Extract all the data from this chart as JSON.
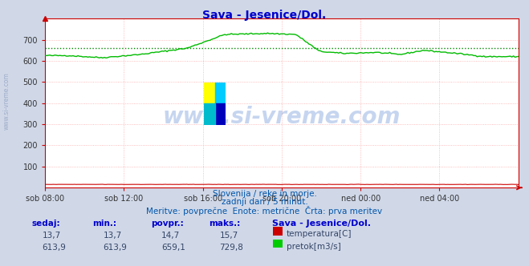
{
  "title": "Sava - Jesenice/Dol.",
  "title_color": "#0000cc",
  "bg_color": "#d0d8e8",
  "plot_bg_color": "#ffffff",
  "grid_color": "#ffaaaa",
  "x_labels": [
    "sob 08:00",
    "sob 12:00",
    "sob 16:00",
    "sob 20:00",
    "ned 00:00",
    "ned 04:00"
  ],
  "x_ticks_norm": [
    0.0,
    0.1667,
    0.3333,
    0.5,
    0.6667,
    0.8333
  ],
  "y_min": 0,
  "y_max": 800,
  "y_ticks": [
    100,
    200,
    300,
    400,
    500,
    600,
    700
  ],
  "avg_line_value": 659.1,
  "avg_line_color": "#008800",
  "flow_line_color": "#00bb00",
  "temp_line_color": "#cc0000",
  "watermark_text": "www.si-vreme.com",
  "watermark_color": "#4477cc",
  "watermark_alpha": 0.3,
  "subtitle1": "Slovenija / reke in morje.",
  "subtitle2": "zadnji dan / 5 minut.",
  "subtitle3": "Meritve: povprečne  Enote: metrične  Črta: prva meritev",
  "subtitle_color": "#0055aa",
  "table_header": [
    "sedaj:",
    "min.:",
    "povpr.:",
    "maks.:",
    "Sava - Jesenice/Dol."
  ],
  "table_header_color": "#0000cc",
  "table_row1": [
    "13,7",
    "13,7",
    "14,7",
    "15,7"
  ],
  "table_row2": [
    "613,9",
    "613,9",
    "659,1",
    "729,8"
  ],
  "table_color": "#334466",
  "legend_temp_label": "temperatura[C]",
  "legend_flow_label": "pretok[m3/s]",
  "n_points": 288,
  "axis_color": "#cc0000",
  "left_label": "www.si-vreme.com",
  "left_label_color": "#8899bb"
}
